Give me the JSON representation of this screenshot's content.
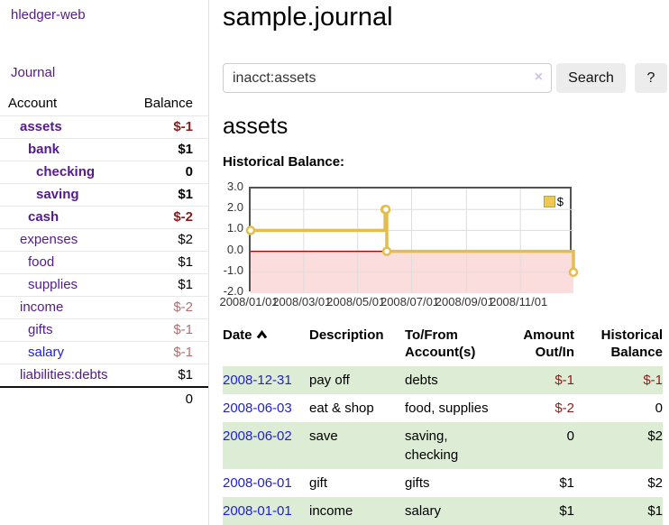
{
  "app": {
    "title": "hledger-web",
    "nav_journal": "Journal"
  },
  "sidebar": {
    "header": {
      "account": "Account",
      "balance": "Balance"
    },
    "accounts": [
      {
        "name": "assets",
        "balance": "$-1",
        "depth": 1,
        "bold": "true",
        "link": "purple",
        "tone": "neg-strong"
      },
      {
        "name": "bank",
        "balance": "$1",
        "depth": 2,
        "bold": "true",
        "link": "purple",
        "tone": "pos"
      },
      {
        "name": "checking",
        "balance": "0",
        "depth": 3,
        "bold": "true",
        "link": "purple",
        "tone": "pos"
      },
      {
        "name": "saving",
        "balance": "$1",
        "depth": 3,
        "bold": "true",
        "link": "purple",
        "tone": "pos"
      },
      {
        "name": "cash",
        "balance": "$-2",
        "depth": 2,
        "bold": "true",
        "link": "purple",
        "tone": "neg-strong"
      },
      {
        "name": "expenses",
        "balance": "$2",
        "depth": 1,
        "bold": "false",
        "link": "purple",
        "tone": "pos"
      },
      {
        "name": "food",
        "balance": "$1",
        "depth": 2,
        "bold": "false",
        "link": "purple",
        "tone": "pos"
      },
      {
        "name": "supplies",
        "balance": "$1",
        "depth": 2,
        "bold": "false",
        "link": "purple",
        "tone": "pos"
      },
      {
        "name": "income",
        "balance": "$-2",
        "depth": 1,
        "bold": "false",
        "link": "purple",
        "tone": "neg-soft"
      },
      {
        "name": "gifts",
        "balance": "$-1",
        "depth": 2,
        "bold": "false",
        "link": "purple",
        "tone": "neg-soft"
      },
      {
        "name": "salary",
        "balance": "$-1",
        "depth": 2,
        "bold": "false",
        "link": "blue",
        "tone": "neg-soft"
      },
      {
        "name": "liabilities:debts",
        "balance": "$1",
        "depth": 1,
        "bold": "false",
        "link": "purple",
        "tone": "pos"
      }
    ],
    "total": "0"
  },
  "main": {
    "title": "sample.journal",
    "search": {
      "value": "inacct:assets",
      "clear_label": "×",
      "button": "Search",
      "help": "?"
    },
    "account_heading": "assets",
    "chart_label": "Historical Balance:"
  },
  "chart_data": {
    "type": "line",
    "title": "Historical Balance",
    "step": true,
    "series": [
      {
        "name": "$",
        "points": [
          [
            "2008-01-01",
            1
          ],
          [
            "2008-06-01",
            2
          ],
          [
            "2008-06-02",
            2
          ],
          [
            "2008-06-03",
            0
          ],
          [
            "2008-12-31",
            -1
          ]
        ]
      }
    ],
    "ylim": [
      -2,
      3
    ],
    "yticks": [
      3.0,
      2.0,
      1.0,
      0.0,
      -1.0,
      -2.0
    ],
    "xticks": [
      "2008/01/01",
      "2008/03/01",
      "2008/05/01",
      "2008/07/01",
      "2008/09/01",
      "2008/11/01"
    ],
    "x_start": "2008-01-01",
    "x_span_days": 365,
    "legend": {
      "label": "$",
      "position": "top-right"
    },
    "grid": true,
    "line_color": "#e3bd4f",
    "negative_region_color": "#fbdddd",
    "zero_line_color": "#991414"
  },
  "register": {
    "columns": [
      "Date",
      "Description",
      "To/From Account(s)",
      "Amount Out/In",
      "Historical Balance"
    ],
    "rows": [
      {
        "date": "2008-12-31",
        "description": "pay off",
        "accounts": "debts",
        "amount": "$-1",
        "balance": "$-1",
        "amount_tone": "neg",
        "balance_tone": "neg"
      },
      {
        "date": "2008-06-03",
        "description": "eat & shop",
        "accounts": "food, supplies",
        "amount": "$-2",
        "balance": "0",
        "amount_tone": "neg",
        "balance_tone": "pos"
      },
      {
        "date": "2008-06-02",
        "description": "save",
        "accounts": "saving, checking",
        "amount": "0",
        "balance": "$2",
        "amount_tone": "pos",
        "balance_tone": "pos"
      },
      {
        "date": "2008-06-01",
        "description": "gift",
        "accounts": "gifts",
        "amount": "$1",
        "balance": "$2",
        "amount_tone": "pos",
        "balance_tone": "pos"
      },
      {
        "date": "2008-01-01",
        "description": "income",
        "accounts": "salary",
        "amount": "$1",
        "balance": "$1",
        "amount_tone": "pos",
        "balance_tone": "pos"
      }
    ]
  }
}
